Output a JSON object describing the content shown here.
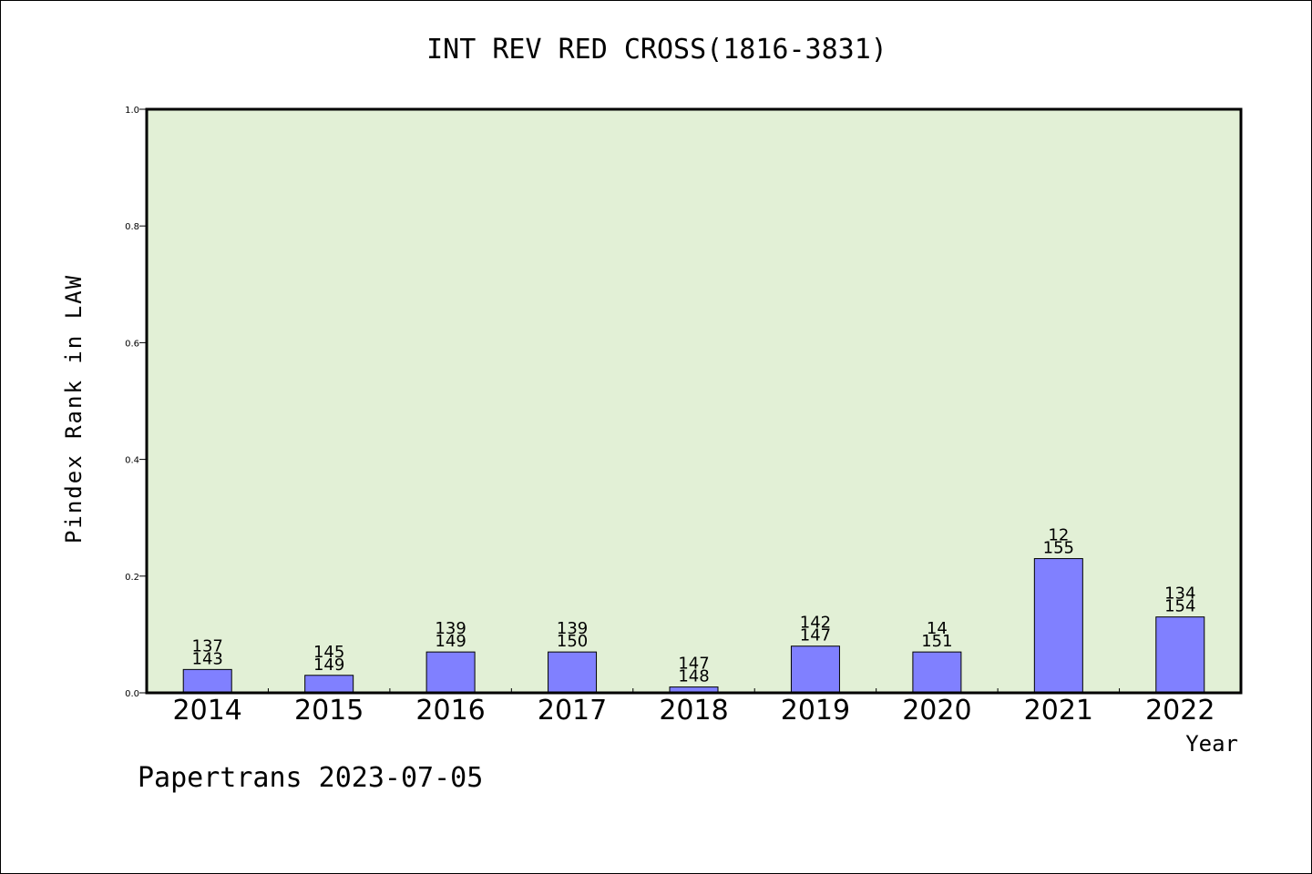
{
  "chart_data": {
    "type": "bar",
    "title": "INT REV RED CROSS(1816-3831)",
    "xlabel": "Year",
    "ylabel": "Pindex Rank in LAW",
    "categories": [
      "2014",
      "2015",
      "2016",
      "2017",
      "2018",
      "2019",
      "2020",
      "2021",
      "2022"
    ],
    "values": [
      0.04,
      0.03,
      0.07,
      0.07,
      0.01,
      0.08,
      0.07,
      0.23,
      0.13
    ],
    "bar_labels_top": [
      "137",
      "145",
      "139",
      "139",
      "147",
      "142",
      "14",
      "12",
      "134"
    ],
    "bar_labels_bottom": [
      "143",
      "149",
      "149",
      "150",
      "148",
      "147",
      "151",
      "155",
      "154"
    ],
    "ylim": [
      0,
      1.0
    ],
    "yticks": [
      "0.0",
      "0.2",
      "0.4",
      "0.6",
      "0.8",
      "1.0"
    ],
    "grid": false,
    "colors": {
      "bar": "#8080ff",
      "plot_bg": "#e2f0d6",
      "frame": "#000000"
    }
  },
  "footer": "Papertrans 2023-07-05"
}
